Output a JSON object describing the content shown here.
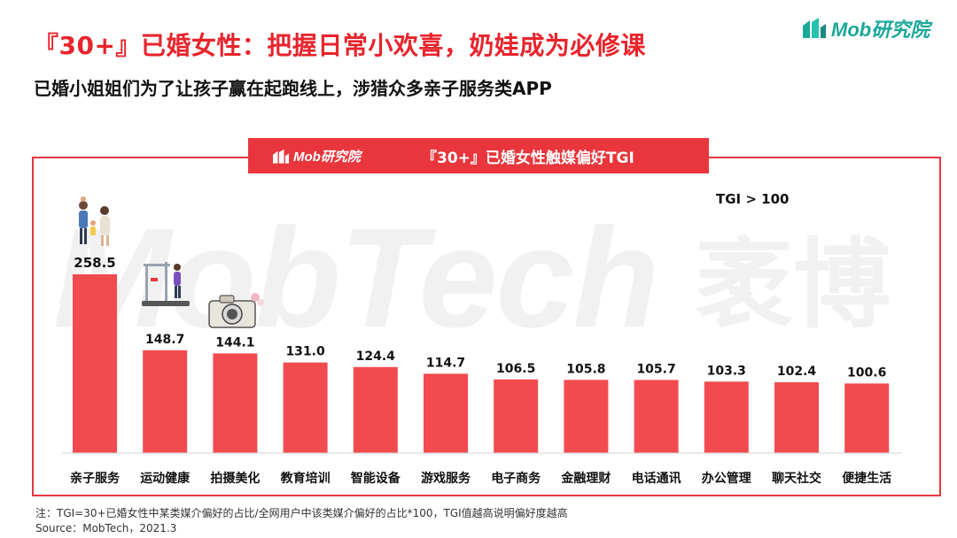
{
  "brand": {
    "logo_text": "Mob研究院",
    "accent": "#e8363c",
    "logo_color": "#1aa89a"
  },
  "title": "『30+』已婚女性：把握日常小欢喜，奶娃成为必修课",
  "subtitle": "已婚小姐姐们为了让孩子赢在起跑线上，涉猎众多亲子服务类APP",
  "watermark": {
    "latin": "MobTech",
    "cn": "袤博"
  },
  "note": "注：TGI=30+已婚女性中某类媒介偏好的占比/全网用户中该类媒介偏好的占比*100，TGI值越高说明偏好度越高",
  "source": "Source：MobTech，2021.3",
  "chart_data": {
    "type": "bar",
    "title": "『30+』已婚女性触媒偏好TGI",
    "legend_note": "TGI > 100",
    "categories": [
      "亲子服务",
      "运动健康",
      "拍摄美化",
      "教育培训",
      "智能设备",
      "游戏服务",
      "电子商务",
      "金融理财",
      "电话通讯",
      "办公管理",
      "聊天社交",
      "便捷生活"
    ],
    "values": [
      258.5,
      148.7,
      144.1,
      131.0,
      124.4,
      114.7,
      106.5,
      105.8,
      105.7,
      103.3,
      102.4,
      100.6
    ],
    "value_labels": [
      "258.5",
      "148.7",
      "144.1",
      "131.0",
      "124.4",
      "114.7",
      "106.5",
      "105.8",
      "105.7",
      "103.3",
      "102.4",
      "100.6"
    ],
    "bar_color": "#f24b4f",
    "ylim": [
      0,
      280
    ],
    "grid": false
  }
}
